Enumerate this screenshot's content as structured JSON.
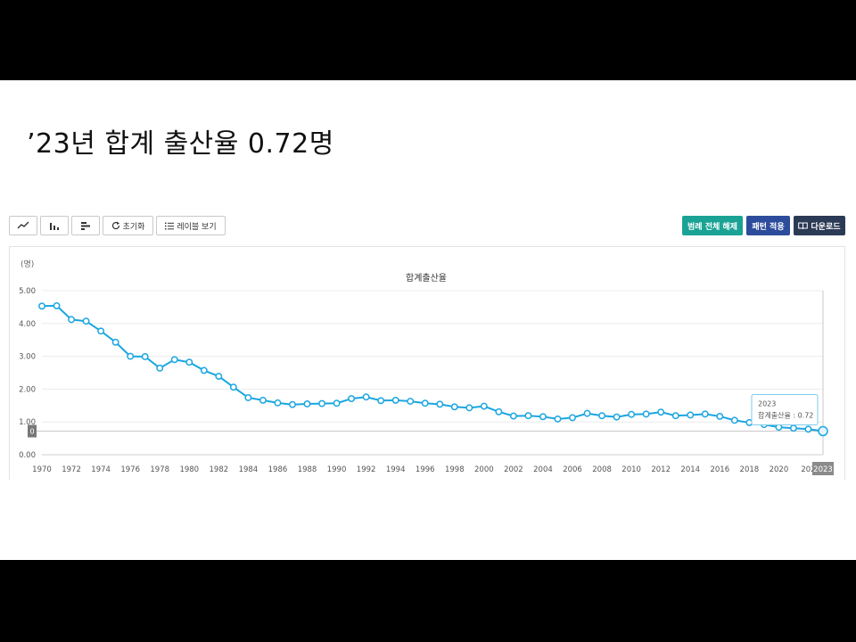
{
  "slide": {
    "title": "’23년 합계 출산율 0.72명"
  },
  "toolbar": {
    "reset_label": "초기화",
    "label_view_label": "레이블 보기",
    "legend_clear_label": "범례 전체 해제",
    "pattern_label": "패턴 적용",
    "download_label": "다운로드",
    "colors": {
      "teal": "#1aa394",
      "blue": "#2d4c9b",
      "dark": "#2b3a55"
    }
  },
  "chart_data": {
    "type": "line",
    "title": "합계출산율",
    "ylabel": "(명)",
    "xlabel": "",
    "ylim": [
      0,
      5
    ],
    "yticks": [
      "0.00",
      "1.00",
      "2.00",
      "3.00",
      "4.00",
      "5.00"
    ],
    "x": [
      1970,
      1971,
      1972,
      1973,
      1974,
      1975,
      1976,
      1977,
      1978,
      1979,
      1980,
      1981,
      1982,
      1983,
      1984,
      1985,
      1986,
      1987,
      1988,
      1989,
      1990,
      1991,
      1992,
      1993,
      1994,
      1995,
      1996,
      1997,
      1998,
      1999,
      2000,
      2001,
      2002,
      2003,
      2004,
      2005,
      2006,
      2007,
      2008,
      2009,
      2010,
      2011,
      2012,
      2013,
      2014,
      2015,
      2016,
      2017,
      2018,
      2019,
      2020,
      2021,
      2022,
      2023
    ],
    "x_tick_labels": [
      "1970",
      "1972",
      "1974",
      "1976",
      "1978",
      "1980",
      "1982",
      "1984",
      "1986",
      "1988",
      "1990",
      "1992",
      "1994",
      "1996",
      "1998",
      "2000",
      "2002",
      "2004",
      "2006",
      "2008",
      "2010",
      "2012",
      "2014",
      "2016",
      "2018",
      "2020",
      "202",
      "2023"
    ],
    "series": [
      {
        "values": [
          4.53,
          4.54,
          4.12,
          4.07,
          3.77,
          3.43,
          3.0,
          2.99,
          2.64,
          2.9,
          2.82,
          2.57,
          2.39,
          2.06,
          1.74,
          1.66,
          1.58,
          1.53,
          1.55,
          1.56,
          1.57,
          1.71,
          1.76,
          1.65,
          1.66,
          1.63,
          1.57,
          1.54,
          1.46,
          1.43,
          1.48,
          1.31,
          1.18,
          1.19,
          1.16,
          1.09,
          1.13,
          1.26,
          1.19,
          1.15,
          1.23,
          1.24,
          1.3,
          1.19,
          1.21,
          1.24,
          1.17,
          1.05,
          0.98,
          0.92,
          0.84,
          0.81,
          0.78,
          0.72
        ],
        "color": "#1ba6e0"
      }
    ],
    "crosshair_value": "0",
    "tooltip": {
      "year": "2023",
      "text": "합계출산율 : 0.72"
    },
    "highlight_x": "2023",
    "grid": true,
    "legend": "none"
  }
}
